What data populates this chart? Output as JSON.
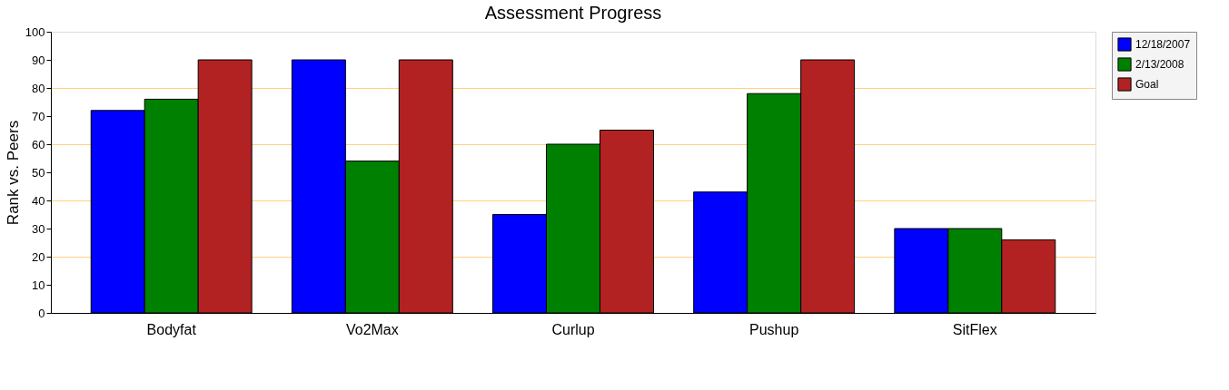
{
  "chart_data": {
    "type": "bar",
    "title": "Assessment Progress",
    "ylabel": "Rank vs. Peers",
    "categories": [
      "Bodyfat",
      "Vo2Max",
      "Curlup",
      "Pushup",
      "SitFlex"
    ],
    "series": [
      {
        "name": "12/18/2007",
        "color": "#0000ff",
        "values": [
          72,
          90,
          35,
          43,
          30
        ]
      },
      {
        "name": "2/13/2008",
        "color": "#008000",
        "values": [
          76,
          54,
          60,
          78,
          30
        ]
      },
      {
        "name": "Goal",
        "color": "#b22222",
        "values": [
          90,
          90,
          65,
          90,
          26
        ]
      }
    ],
    "ylim": [
      0,
      100
    ],
    "yticks": [
      0,
      10,
      20,
      30,
      40,
      50,
      60,
      70,
      80,
      90,
      100
    ],
    "grid": "y",
    "legend": "top right"
  }
}
